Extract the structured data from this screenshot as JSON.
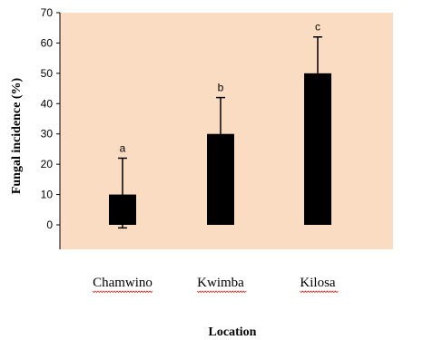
{
  "chart_data": {
    "type": "bar",
    "categories": [
      "Chamwino",
      "Kwimba",
      "Kilosa"
    ],
    "values": [
      10,
      30,
      50
    ],
    "error_plus": [
      12,
      12,
      12
    ],
    "error_minus": [
      11,
      0,
      0
    ],
    "significance_labels": [
      "a",
      "b",
      "c"
    ],
    "xlabel": "Location",
    "ylabel": "Fungal incidence (%)",
    "ylim": [
      -10,
      70
    ],
    "yticks": [
      0,
      10,
      20,
      30,
      40,
      50,
      60,
      70
    ],
    "grid": false,
    "legend": "none"
  },
  "colors": {
    "plot_background": "#fadcc3",
    "bar": "#000000",
    "spell_underline": "#e03030"
  }
}
